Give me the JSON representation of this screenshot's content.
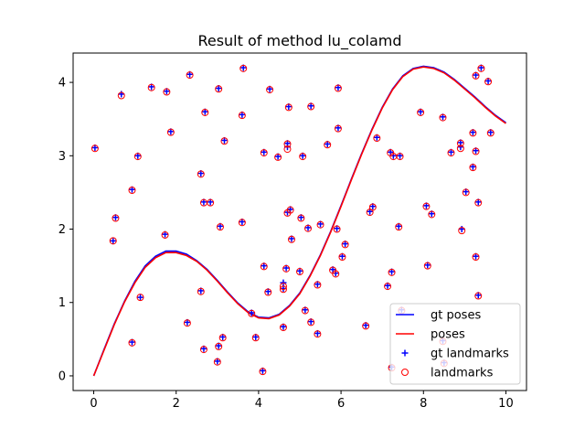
{
  "chart_data": {
    "type": "scatter",
    "title": "Result of method lu_colamd",
    "xlabel": "",
    "ylabel": "",
    "xlim": [
      -0.5,
      10.5
    ],
    "ylim": [
      -0.2,
      4.4
    ],
    "xticks": [
      "0",
      "2",
      "4",
      "6",
      "8",
      "10"
    ],
    "yticks": [
      "0",
      "1",
      "2",
      "3",
      "4"
    ],
    "grid": false,
    "legend_position": "lower-right",
    "colors": {
      "gt_poses": "#0000ff",
      "poses": "#ff0000",
      "gt_landmarks": "#0000ff",
      "landmarks": "#ff0000"
    },
    "series": [
      {
        "name": "gt poses",
        "kind": "line",
        "x": [
          0,
          0.25,
          0.5,
          0.75,
          1.0,
          1.25,
          1.5,
          1.75,
          2.0,
          2.25,
          2.5,
          2.75,
          3.0,
          3.25,
          3.5,
          3.75,
          4.0,
          4.25,
          4.5,
          4.75,
          5.0,
          5.25,
          5.5,
          5.75,
          6.0,
          6.25,
          6.5,
          6.75,
          7.0,
          7.25,
          7.5,
          7.75,
          8.0,
          8.25,
          8.5,
          8.75,
          9.0,
          9.25,
          9.5,
          9.75,
          10.0
        ],
        "y": [
          0.0,
          0.36,
          0.71,
          1.02,
          1.29,
          1.5,
          1.63,
          1.7,
          1.7,
          1.66,
          1.57,
          1.45,
          1.3,
          1.14,
          0.99,
          0.87,
          0.8,
          0.79,
          0.84,
          0.96,
          1.13,
          1.37,
          1.65,
          1.97,
          2.32,
          2.68,
          3.03,
          3.36,
          3.66,
          3.91,
          4.09,
          4.19,
          4.22,
          4.2,
          4.14,
          4.04,
          3.92,
          3.8,
          3.67,
          3.55,
          3.45
        ]
      },
      {
        "name": "poses",
        "kind": "line",
        "x": [
          0,
          0.25,
          0.5,
          0.75,
          1.0,
          1.25,
          1.5,
          1.75,
          2.0,
          2.25,
          2.5,
          2.75,
          3.0,
          3.25,
          3.5,
          3.75,
          4.0,
          4.25,
          4.5,
          4.75,
          5.0,
          5.25,
          5.5,
          5.75,
          6.0,
          6.25,
          6.5,
          6.75,
          7.0,
          7.25,
          7.5,
          7.75,
          8.0,
          8.25,
          8.5,
          8.75,
          9.0,
          9.25,
          9.5,
          9.75,
          10.0
        ],
        "y": [
          0.0,
          0.35,
          0.7,
          1.01,
          1.27,
          1.48,
          1.61,
          1.68,
          1.68,
          1.64,
          1.56,
          1.44,
          1.29,
          1.13,
          0.98,
          0.86,
          0.79,
          0.78,
          0.83,
          0.95,
          1.12,
          1.36,
          1.64,
          1.96,
          2.31,
          2.67,
          3.02,
          3.35,
          3.65,
          3.9,
          4.08,
          4.18,
          4.21,
          4.19,
          4.13,
          4.03,
          3.91,
          3.79,
          3.66,
          3.54,
          3.44
        ]
      },
      {
        "name": "gt landmarks",
        "kind": "scatter",
        "points": [
          [
            0.03,
            3.11
          ],
          [
            0.47,
            1.84
          ],
          [
            0.53,
            2.16
          ],
          [
            0.67,
            3.84
          ],
          [
            0.93,
            0.46
          ],
          [
            0.93,
            2.54
          ],
          [
            1.07,
            3.0
          ],
          [
            1.13,
            1.07
          ],
          [
            1.4,
            3.94
          ],
          [
            1.73,
            1.93
          ],
          [
            1.77,
            3.88
          ],
          [
            1.87,
            3.33
          ],
          [
            2.27,
            0.73
          ],
          [
            2.33,
            4.11
          ],
          [
            2.6,
            1.16
          ],
          [
            2.6,
            2.76
          ],
          [
            2.67,
            0.37
          ],
          [
            2.67,
            2.37
          ],
          [
            2.7,
            3.6
          ],
          [
            2.83,
            2.37
          ],
          [
            3.0,
            0.2
          ],
          [
            3.03,
            0.41
          ],
          [
            3.03,
            3.92
          ],
          [
            3.07,
            2.04
          ],
          [
            3.13,
            0.53
          ],
          [
            3.17,
            3.21
          ],
          [
            3.6,
            2.1
          ],
          [
            3.6,
            3.56
          ],
          [
            3.63,
            4.2
          ],
          [
            3.83,
            0.86
          ],
          [
            3.93,
            0.53
          ],
          [
            4.1,
            0.07
          ],
          [
            4.13,
            1.5
          ],
          [
            4.13,
            3.05
          ],
          [
            4.23,
            1.15
          ],
          [
            4.27,
            3.91
          ],
          [
            4.47,
            2.99
          ],
          [
            4.6,
            0.67
          ],
          [
            4.6,
            1.19
          ],
          [
            4.6,
            1.27
          ],
          [
            4.67,
            1.47
          ],
          [
            4.7,
            3.17
          ],
          [
            4.7,
            3.12
          ],
          [
            4.7,
            2.23
          ],
          [
            4.73,
            3.67
          ],
          [
            4.77,
            2.27
          ],
          [
            4.8,
            1.87
          ],
          [
            5.0,
            1.43
          ],
          [
            5.03,
            2.16
          ],
          [
            5.07,
            3.0
          ],
          [
            5.13,
            0.9
          ],
          [
            5.2,
            2.02
          ],
          [
            5.27,
            0.74
          ],
          [
            5.27,
            3.68
          ],
          [
            5.43,
            1.25
          ],
          [
            5.43,
            0.58
          ],
          [
            5.5,
            2.07
          ],
          [
            5.67,
            3.16
          ],
          [
            5.8,
            1.45
          ],
          [
            5.87,
            1.4
          ],
          [
            5.9,
            2.01
          ],
          [
            5.93,
            3.93
          ],
          [
            5.93,
            3.38
          ],
          [
            6.03,
            1.63
          ],
          [
            6.1,
            1.8
          ],
          [
            6.6,
            0.69
          ],
          [
            6.7,
            2.24
          ],
          [
            6.77,
            2.31
          ],
          [
            6.87,
            3.25
          ],
          [
            7.13,
            1.23
          ],
          [
            7.2,
            3.05
          ],
          [
            7.23,
            1.42
          ],
          [
            7.23,
            0.12
          ],
          [
            7.27,
            3.0
          ],
          [
            7.4,
            2.04
          ],
          [
            7.43,
            3.0
          ],
          [
            7.47,
            0.9
          ],
          [
            7.93,
            3.6
          ],
          [
            8.07,
            2.32
          ],
          [
            8.1,
            1.51
          ],
          [
            8.2,
            2.21
          ],
          [
            8.47,
            3.53
          ],
          [
            8.47,
            0.48
          ],
          [
            8.5,
            0.18
          ],
          [
            8.67,
            3.05
          ],
          [
            8.9,
            3.12
          ],
          [
            8.9,
            3.18
          ],
          [
            8.93,
            2.0
          ],
          [
            9.03,
            2.51
          ],
          [
            9.2,
            3.32
          ],
          [
            9.2,
            2.85
          ],
          [
            9.27,
            1.63
          ],
          [
            9.27,
            3.07
          ],
          [
            9.27,
            4.1
          ],
          [
            9.33,
            1.1
          ],
          [
            9.33,
            2.37
          ],
          [
            9.4,
            4.2
          ],
          [
            9.57,
            4.02
          ],
          [
            9.63,
            3.32
          ]
        ]
      },
      {
        "name": "landmarks",
        "kind": "scatter",
        "points": [
          [
            0.03,
            3.1
          ],
          [
            0.47,
            1.84
          ],
          [
            0.53,
            2.15
          ],
          [
            0.67,
            3.82
          ],
          [
            0.93,
            0.45
          ],
          [
            0.93,
            2.53
          ],
          [
            1.07,
            2.99
          ],
          [
            1.13,
            1.07
          ],
          [
            1.4,
            3.93
          ],
          [
            1.73,
            1.92
          ],
          [
            1.77,
            3.87
          ],
          [
            1.87,
            3.32
          ],
          [
            2.27,
            0.72
          ],
          [
            2.33,
            4.1
          ],
          [
            2.6,
            1.15
          ],
          [
            2.6,
            2.75
          ],
          [
            2.67,
            0.36
          ],
          [
            2.67,
            2.36
          ],
          [
            2.7,
            3.59
          ],
          [
            2.83,
            2.36
          ],
          [
            3.0,
            0.19
          ],
          [
            3.03,
            0.4
          ],
          [
            3.03,
            3.91
          ],
          [
            3.07,
            2.03
          ],
          [
            3.13,
            0.52
          ],
          [
            3.17,
            3.2
          ],
          [
            3.6,
            2.09
          ],
          [
            3.6,
            3.55
          ],
          [
            3.63,
            4.19
          ],
          [
            3.83,
            0.85
          ],
          [
            3.93,
            0.52
          ],
          [
            4.1,
            0.06
          ],
          [
            4.13,
            1.49
          ],
          [
            4.13,
            3.04
          ],
          [
            4.23,
            1.14
          ],
          [
            4.27,
            3.9
          ],
          [
            4.47,
            2.98
          ],
          [
            4.6,
            0.66
          ],
          [
            4.6,
            1.18
          ],
          [
            4.6,
            1.22
          ],
          [
            4.67,
            1.46
          ],
          [
            4.7,
            3.16
          ],
          [
            4.7,
            3.09
          ],
          [
            4.7,
            2.22
          ],
          [
            4.73,
            3.66
          ],
          [
            4.77,
            2.26
          ],
          [
            4.8,
            1.86
          ],
          [
            5.0,
            1.42
          ],
          [
            5.03,
            2.15
          ],
          [
            5.07,
            2.99
          ],
          [
            5.13,
            0.89
          ],
          [
            5.2,
            2.01
          ],
          [
            5.27,
            0.73
          ],
          [
            5.27,
            3.67
          ],
          [
            5.43,
            1.24
          ],
          [
            5.43,
            0.57
          ],
          [
            5.5,
            2.06
          ],
          [
            5.67,
            3.15
          ],
          [
            5.8,
            1.44
          ],
          [
            5.87,
            1.39
          ],
          [
            5.9,
            2.0
          ],
          [
            5.93,
            3.92
          ],
          [
            5.93,
            3.37
          ],
          [
            6.03,
            1.62
          ],
          [
            6.1,
            1.79
          ],
          [
            6.6,
            0.68
          ],
          [
            6.7,
            2.23
          ],
          [
            6.77,
            2.3
          ],
          [
            6.87,
            3.24
          ],
          [
            7.13,
            1.22
          ],
          [
            7.2,
            3.04
          ],
          [
            7.23,
            1.41
          ],
          [
            7.23,
            0.11
          ],
          [
            7.27,
            2.99
          ],
          [
            7.4,
            2.03
          ],
          [
            7.43,
            2.99
          ],
          [
            7.47,
            0.89
          ],
          [
            7.93,
            3.59
          ],
          [
            8.07,
            2.31
          ],
          [
            8.1,
            1.5
          ],
          [
            8.2,
            2.2
          ],
          [
            8.47,
            3.52
          ],
          [
            8.47,
            0.47
          ],
          [
            8.5,
            0.17
          ],
          [
            8.67,
            3.04
          ],
          [
            8.9,
            3.1
          ],
          [
            8.9,
            3.17
          ],
          [
            8.93,
            1.98
          ],
          [
            9.03,
            2.5
          ],
          [
            9.2,
            3.31
          ],
          [
            9.2,
            2.84
          ],
          [
            9.27,
            1.62
          ],
          [
            9.27,
            3.06
          ],
          [
            9.27,
            4.09
          ],
          [
            9.33,
            1.09
          ],
          [
            9.33,
            2.36
          ],
          [
            9.4,
            4.19
          ],
          [
            9.57,
            4.01
          ],
          [
            9.63,
            3.31
          ]
        ]
      }
    ]
  }
}
